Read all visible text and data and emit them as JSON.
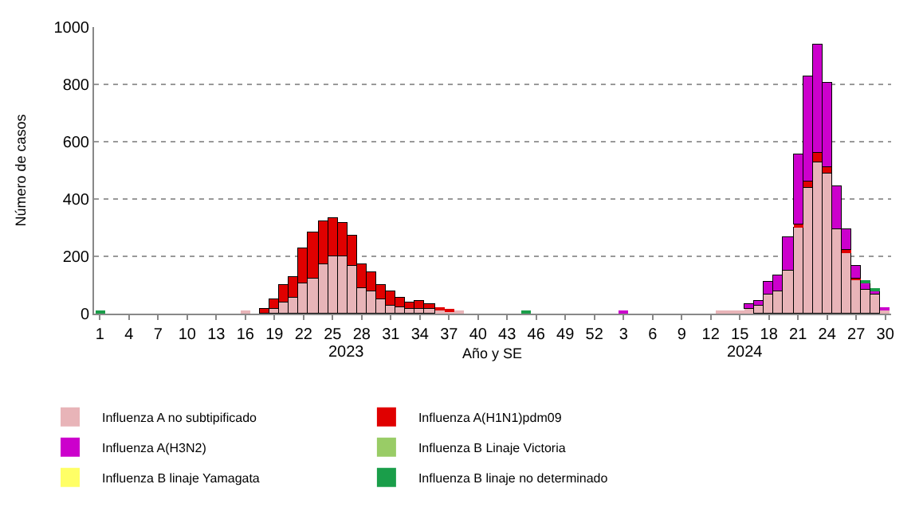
{
  "chart_data": {
    "type": "bar",
    "stacked": true,
    "categories": [
      "1",
      null,
      null,
      "4",
      null,
      null,
      "7",
      null,
      null,
      "10",
      null,
      null,
      "13",
      null,
      null,
      "16",
      null,
      null,
      "19",
      null,
      null,
      "22",
      null,
      null,
      "25",
      null,
      null,
      "28",
      null,
      null,
      "31",
      null,
      null,
      "34",
      null,
      null,
      "37",
      null,
      null,
      "40",
      null,
      null,
      "43",
      null,
      null,
      "46",
      null,
      null,
      "49",
      null,
      null,
      "52",
      null,
      null,
      "3",
      null,
      null,
      "6",
      null,
      null,
      "9",
      null,
      null,
      "12",
      null,
      null,
      "15",
      null,
      null,
      "18",
      null,
      null,
      "21",
      null,
      null,
      "24",
      null,
      null,
      "27",
      null,
      null,
      "30"
    ],
    "xlabel": "Año y SE",
    "ylabel": "Número de casos",
    "ylim": [
      0,
      1000
    ],
    "yticks": [
      0,
      200,
      400,
      600,
      800,
      1000
    ],
    "grid": "y",
    "legend": "bottom",
    "annotations": [
      "2023",
      "2024"
    ],
    "series": [
      {
        "name": "Influenza A no subtipificado",
        "color": "#e8b4b8",
        "values": [
          null,
          null,
          null,
          null,
          null,
          null,
          null,
          null,
          null,
          null,
          null,
          null,
          null,
          null,
          null,
          8,
          null,
          null,
          16,
          40,
          53,
          104,
          125,
          173,
          198,
          200,
          164,
          87,
          76,
          51,
          27,
          22,
          18,
          18,
          16,
          12,
          10,
          6,
          null,
          null,
          null,
          null,
          null,
          null,
          null,
          null,
          null,
          null,
          null,
          null,
          null,
          null,
          null,
          null,
          null,
          null,
          null,
          null,
          null,
          null,
          null,
          null,
          null,
          null,
          6,
          8,
          8,
          14,
          29,
          67,
          76,
          148,
          302,
          441,
          527,
          491,
          293,
          212,
          117,
          86,
          65,
          14
        ]
      },
      {
        "name": "Influenza A(H1N1)pdm09",
        "color": "#e00000",
        "values": [
          null,
          null,
          null,
          null,
          null,
          null,
          null,
          null,
          null,
          null,
          null,
          null,
          null,
          null,
          null,
          null,
          null,
          15,
          33,
          58,
          74,
          123,
          160,
          152,
          138,
          115,
          109,
          86,
          71,
          51,
          53,
          36,
          22,
          26,
          15,
          8,
          5,
          null,
          null,
          null,
          null,
          null,
          null,
          null,
          null,
          null,
          null,
          null,
          null,
          null,
          null,
          null,
          null,
          null,
          null,
          null,
          null,
          null,
          null,
          null,
          null,
          null,
          null,
          null,
          null,
          null,
          null,
          null,
          null,
          null,
          null,
          null,
          8,
          18,
          36,
          18,
          null,
          8,
          5,
          null,
          null,
          null
        ]
      },
      {
        "name": "Influenza A(H3N2)",
        "color": "#cc00cc",
        "values": [
          null,
          null,
          null,
          null,
          null,
          null,
          null,
          null,
          null,
          null,
          null,
          null,
          null,
          null,
          null,
          null,
          null,
          null,
          null,
          null,
          null,
          null,
          null,
          null,
          null,
          null,
          null,
          null,
          null,
          null,
          null,
          null,
          null,
          null,
          null,
          null,
          null,
          null,
          null,
          null,
          null,
          null,
          null,
          null,
          null,
          null,
          null,
          null,
          null,
          null,
          null,
          null,
          null,
          null,
          6,
          null,
          null,
          null,
          null,
          null,
          null,
          null,
          null,
          null,
          null,
          null,
          null,
          18,
          18,
          42,
          60,
          120,
          248,
          371,
          378,
          299,
          153,
          73,
          44,
          20,
          18,
          5
        ]
      },
      {
        "name": "Influenza B Linaje Victoria",
        "color": "#99cc66",
        "values": [
          null,
          null,
          null,
          null,
          null,
          null,
          null,
          null,
          null,
          null,
          null,
          null,
          null,
          null,
          null,
          null,
          null,
          null,
          null,
          null,
          null,
          null,
          null,
          null,
          null,
          null,
          null,
          null,
          null,
          null,
          null,
          null,
          null,
          null,
          null,
          null,
          null,
          null,
          null,
          null,
          null,
          null,
          null,
          null,
          null,
          null,
          null,
          null,
          null,
          null,
          null,
          null,
          null,
          null,
          null,
          null,
          null,
          null,
          null,
          null,
          null,
          null,
          null,
          null,
          null,
          null,
          null,
          null,
          null,
          null,
          null,
          null,
          null,
          null,
          null,
          null,
          null,
          null,
          null,
          null,
          null,
          null
        ]
      },
      {
        "name": "Influenza B linaje Yamagata",
        "color": "#ffff66",
        "values": [
          null,
          null,
          null,
          null,
          null,
          null,
          null,
          null,
          null,
          null,
          null,
          null,
          null,
          null,
          null,
          null,
          null,
          null,
          null,
          null,
          null,
          null,
          null,
          null,
          null,
          null,
          null,
          null,
          null,
          null,
          null,
          null,
          null,
          null,
          null,
          null,
          null,
          null,
          null,
          null,
          null,
          null,
          null,
          null,
          null,
          null,
          null,
          null,
          null,
          null,
          null,
          null,
          null,
          null,
          null,
          null,
          null,
          null,
          null,
          null,
          null,
          null,
          null,
          null,
          null,
          null,
          null,
          null,
          null,
          null,
          null,
          null,
          null,
          null,
          null,
          null,
          null,
          null,
          null,
          null,
          null,
          null
        ]
      },
      {
        "name": "Influenza B linaje no determinado",
        "color": "#1a9e4a",
        "values": [
          10,
          null,
          null,
          null,
          null,
          null,
          null,
          null,
          null,
          null,
          null,
          null,
          null,
          null,
          null,
          null,
          null,
          null,
          null,
          null,
          null,
          null,
          null,
          null,
          null,
          null,
          null,
          null,
          null,
          null,
          null,
          null,
          null,
          null,
          null,
          null,
          null,
          null,
          null,
          null,
          null,
          null,
          null,
          null,
          8,
          null,
          null,
          null,
          null,
          null,
          null,
          null,
          null,
          null,
          null,
          null,
          null,
          null,
          null,
          null,
          null,
          null,
          null,
          null,
          null,
          null,
          null,
          null,
          null,
          null,
          null,
          null,
          null,
          null,
          null,
          null,
          null,
          null,
          null,
          6,
          8,
          null
        ]
      }
    ]
  }
}
